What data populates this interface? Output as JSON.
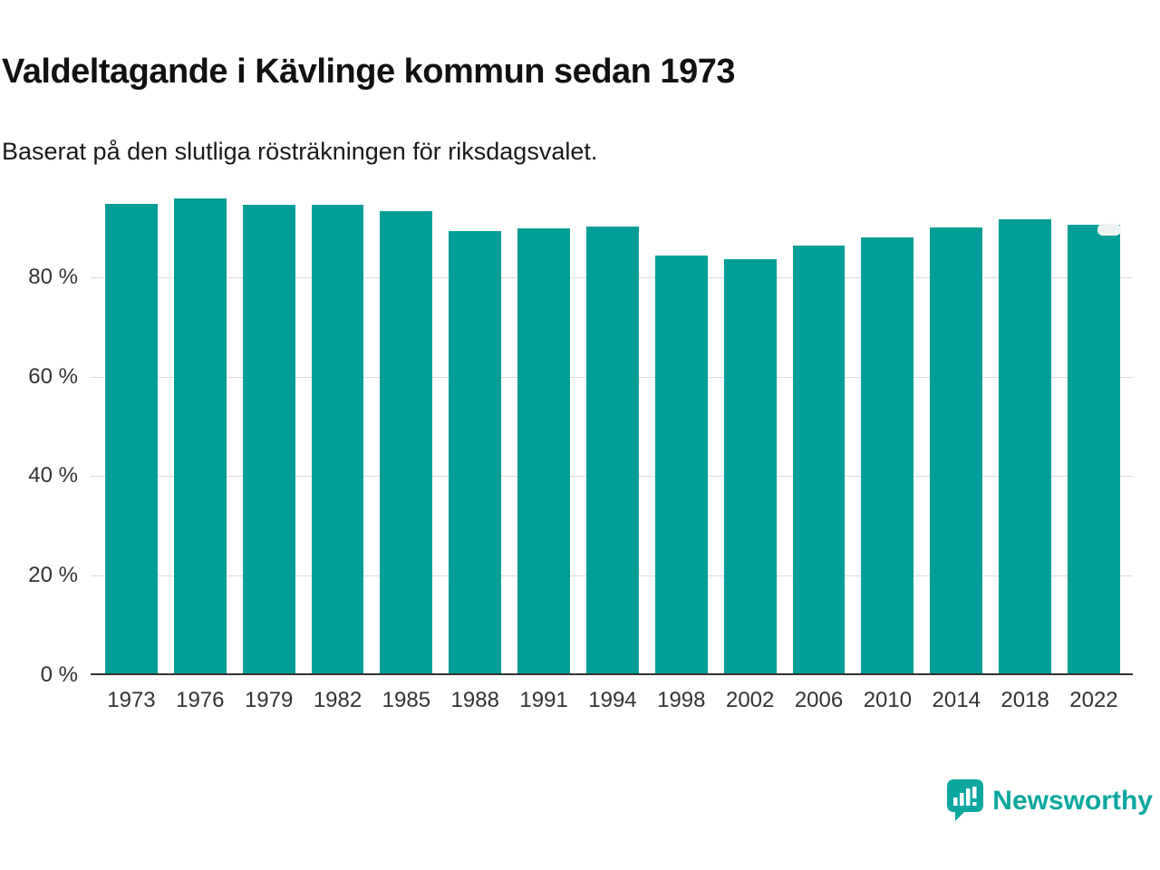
{
  "chart_data": {
    "type": "bar",
    "title": "Valdeltagande i Kävlinge kommun sedan 1973",
    "subtitle": "Baserat på den slutliga rösträkningen för riksdagsvalet.",
    "categories": [
      "1973",
      "1976",
      "1979",
      "1982",
      "1985",
      "1988",
      "1991",
      "1994",
      "1998",
      "2002",
      "2006",
      "2010",
      "2014",
      "2018",
      "2022"
    ],
    "values": [
      94.4,
      95.4,
      94.1,
      94.2,
      92.9,
      88.9,
      89.4,
      89.8,
      84.0,
      83.3,
      86.0,
      87.7,
      89.6,
      91.2,
      90.1
    ],
    "xlabel": "",
    "ylabel": "",
    "ylim": [
      0,
      100
    ],
    "yticks": [
      0,
      20,
      40,
      60,
      80
    ],
    "ytick_labels": [
      "0 %",
      "20 %",
      "40 %",
      "60 %",
      "80 %"
    ],
    "grid": true,
    "legend": false,
    "bar_color": "#009e97",
    "gridline_color": "#dcdcdc",
    "axis_color": "#333333"
  },
  "branding": {
    "logo_text": "Newsworthy",
    "brand_color": "#0ca79e"
  }
}
